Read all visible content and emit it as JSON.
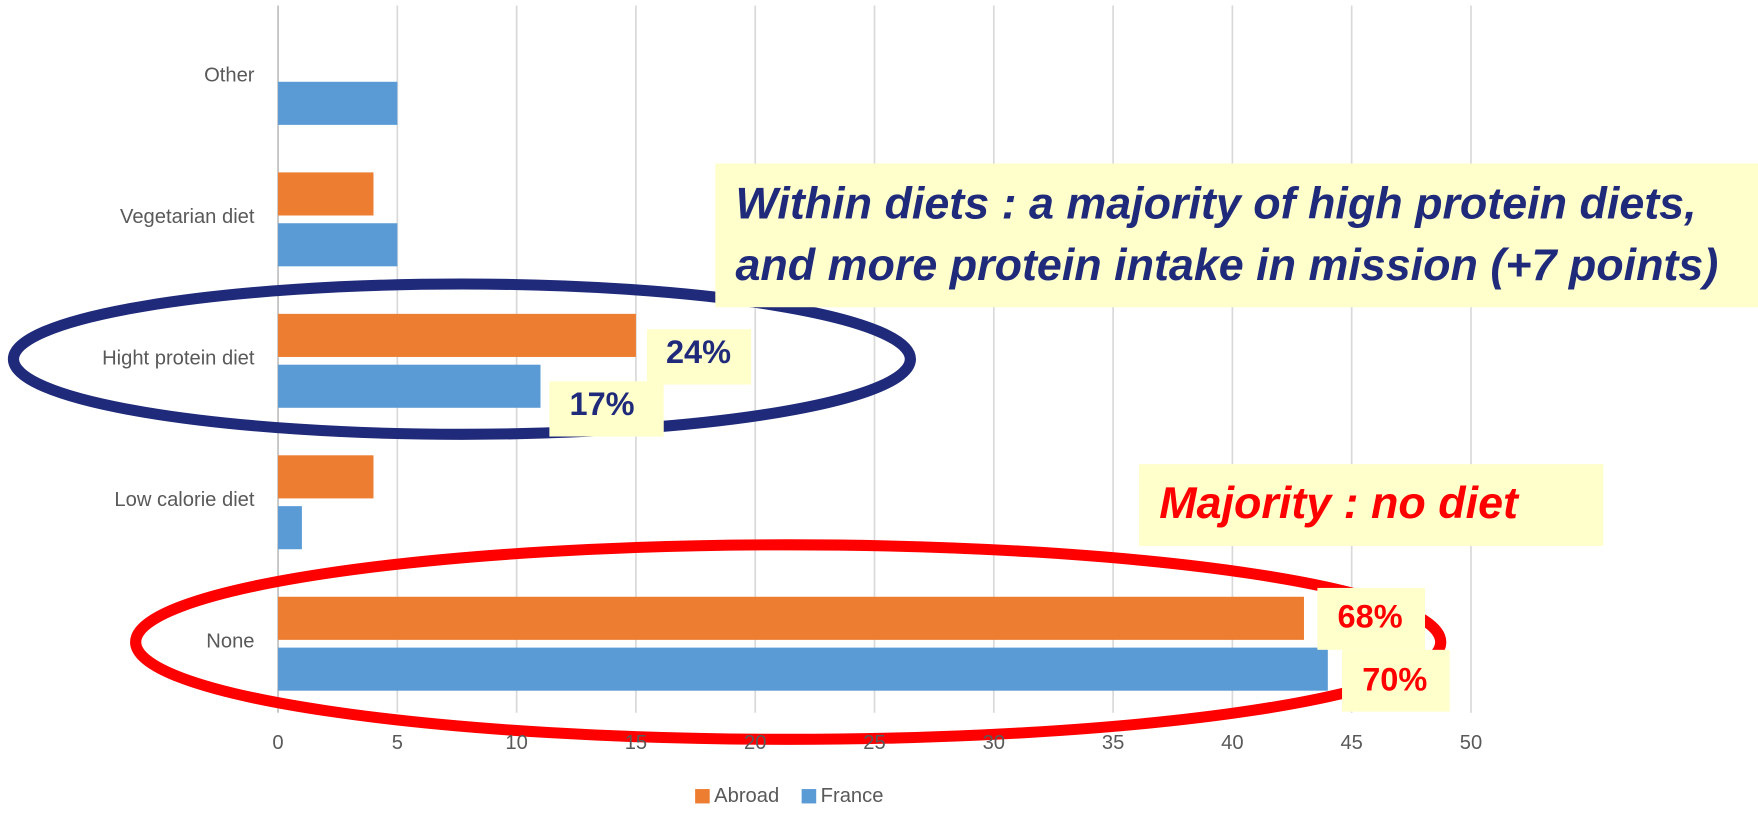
{
  "chart_data": {
    "type": "barh",
    "categories": [
      "None",
      "Low calorie diet",
      "Hight protein diet",
      "Vegetarian diet",
      "Other"
    ],
    "series": [
      {
        "name": "Abroad",
        "color": "#ed7d31",
        "values": [
          43,
          4,
          15,
          4,
          0
        ]
      },
      {
        "name": "France",
        "color": "#5b9bd5",
        "values": [
          44,
          1,
          11,
          5,
          5
        ]
      }
    ],
    "xlim": [
      0,
      50
    ],
    "xticks": [
      0,
      5,
      10,
      15,
      20,
      25,
      30,
      35,
      40,
      45,
      50
    ],
    "grid": true,
    "legend": "bottom",
    "annotations": {
      "diets": [
        "Within diets : a majority of high protein diets,",
        "and more protein intake in mission (+7 points)"
      ],
      "no_diet": "Majority : no diet",
      "protein_abroad": "24%",
      "protein_france": "17%",
      "none_abroad": "68%",
      "none_france": "70%"
    }
  }
}
